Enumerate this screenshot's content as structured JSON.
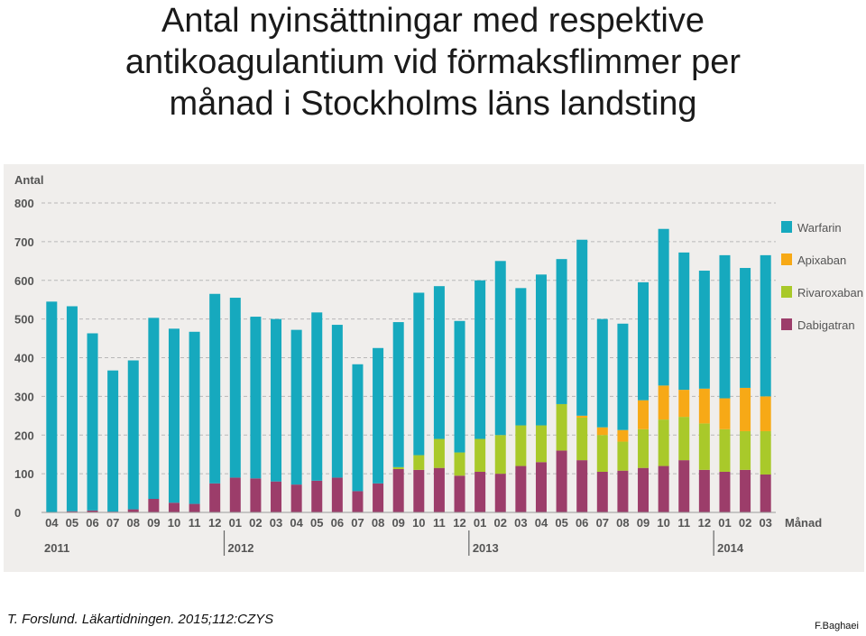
{
  "title_lines": [
    "Antal nyinsättningar med respektive",
    "antikoagulantium vid förmaksflimmer per",
    "månad i Stockholms läns landsting"
  ],
  "citation": "T. Forslund. Läkartidningen. 2015;112:CZYS",
  "author": "F.Baghaei",
  "colors": {
    "Warfarin": "#16a9be",
    "Apixaban": "#f7a916",
    "Rivaroxaban": "#a9c92a",
    "Dabigatran": "#9c3d6a",
    "panel": "#f0eeec",
    "grid": "#b8b8b8",
    "text": "#555555"
  },
  "chart_data": {
    "type": "bar",
    "stacked": true,
    "ylabel": "Antal",
    "xlabel": "Månad",
    "ylim": [
      0,
      800
    ],
    "yticks": [
      0,
      100,
      200,
      300,
      400,
      500,
      600,
      700,
      800
    ],
    "categories": [
      "04",
      "05",
      "06",
      "07",
      "08",
      "09",
      "10",
      "11",
      "12",
      "01",
      "02",
      "03",
      "04",
      "05",
      "06",
      "07",
      "08",
      "09",
      "10",
      "11",
      "12",
      "01",
      "02",
      "03",
      "04",
      "05",
      "06",
      "07",
      "08",
      "09",
      "10",
      "11",
      "12",
      "01",
      "02",
      "03"
    ],
    "years": [
      {
        "label": "2011",
        "start": 0,
        "end": 8
      },
      {
        "label": "2012",
        "start": 9,
        "end": 20
      },
      {
        "label": "2013",
        "start": 21,
        "end": 32
      },
      {
        "label": "2014",
        "start": 33,
        "end": 35
      }
    ],
    "legend": [
      "Warfarin",
      "Apixaban",
      "Rivaroxaban",
      "Dabigatran"
    ],
    "legend_position": "right",
    "series": [
      {
        "name": "Dabigatran",
        "values": [
          0,
          3,
          5,
          2,
          8,
          35,
          25,
          22,
          75,
          90,
          88,
          80,
          72,
          82,
          90,
          55,
          75,
          112,
          110,
          115,
          95,
          105,
          100,
          120,
          130,
          160,
          135,
          105,
          108,
          115,
          120,
          135,
          110,
          105,
          110,
          98
        ]
      },
      {
        "name": "Rivaroxaban",
        "values": [
          0,
          0,
          0,
          0,
          0,
          0,
          0,
          0,
          0,
          0,
          0,
          0,
          0,
          0,
          0,
          0,
          0,
          5,
          38,
          75,
          60,
          85,
          100,
          105,
          95,
          120,
          110,
          95,
          75,
          100,
          120,
          112,
          120,
          110,
          100,
          112
        ]
      },
      {
        "name": "Apixaban",
        "values": [
          0,
          0,
          0,
          0,
          0,
          0,
          0,
          0,
          0,
          0,
          0,
          0,
          0,
          0,
          0,
          0,
          0,
          0,
          0,
          0,
          0,
          0,
          0,
          0,
          0,
          0,
          5,
          20,
          30,
          75,
          88,
          70,
          90,
          80,
          112,
          90
        ]
      },
      {
        "name": "Warfarin",
        "values": [
          545,
          530,
          458,
          365,
          385,
          468,
          450,
          445,
          490,
          465,
          418,
          420,
          400,
          435,
          395,
          328,
          350,
          375,
          420,
          395,
          340,
          410,
          450,
          355,
          390,
          375,
          455,
          280,
          275,
          305,
          405,
          355,
          305,
          370,
          310,
          365
        ]
      }
    ]
  }
}
